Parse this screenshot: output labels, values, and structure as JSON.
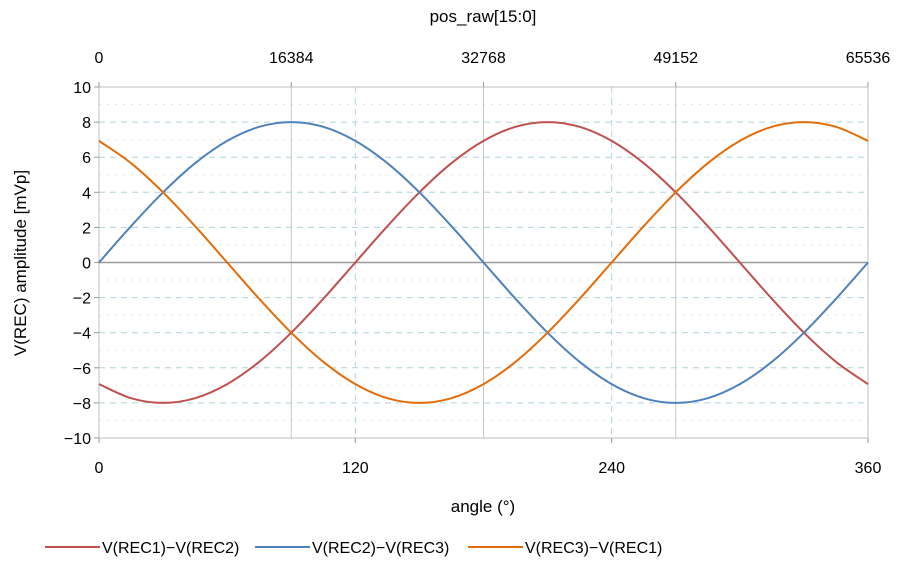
{
  "chart_data": {
    "type": "line",
    "xlabel": "angle (°)",
    "x2label": "pos_raw[15:0]",
    "ylabel": "V(REC) amplitude [mVp]",
    "xlim": [
      0,
      360
    ],
    "ylim": [
      -10,
      10
    ],
    "x_ticks": [
      "0",
      "120",
      "240",
      "360"
    ],
    "x2_ticks": [
      "0",
      "16384",
      "32768",
      "49152",
      "65536"
    ],
    "y_ticks": [
      "10",
      "8",
      "6",
      "4",
      "2",
      "0",
      "−2",
      "−4",
      "−6",
      "−8",
      "−10"
    ],
    "grid": true,
    "legend_position": "bottom",
    "x": [
      0,
      15,
      30,
      45,
      60,
      75,
      90,
      105,
      120,
      135,
      150,
      165,
      180,
      195,
      210,
      225,
      240,
      255,
      270,
      285,
      300,
      315,
      330,
      345,
      360
    ],
    "series": [
      {
        "name": "V(REC1)−V(REC2)",
        "color": "#c0504d",
        "values": [
          -6.93,
          -7.73,
          -8.0,
          -7.73,
          -6.93,
          -5.66,
          -4.0,
          -2.07,
          0.0,
          2.07,
          4.0,
          5.66,
          6.93,
          7.73,
          8.0,
          7.73,
          6.93,
          5.66,
          4.0,
          2.07,
          0.0,
          -2.07,
          -4.0,
          -5.66,
          -6.93
        ]
      },
      {
        "name": "V(REC2)−V(REC3)",
        "color": "#4f81bd",
        "values": [
          0.0,
          2.07,
          4.0,
          5.66,
          6.93,
          7.73,
          8.0,
          7.73,
          6.93,
          5.66,
          4.0,
          2.07,
          0.0,
          -2.07,
          -4.0,
          -5.66,
          -6.93,
          -7.73,
          -8.0,
          -7.73,
          -6.93,
          -5.66,
          -4.0,
          -2.07,
          0.0
        ]
      },
      {
        "name": "V(REC3)−V(REC1)",
        "color": "#e36c09",
        "values": [
          6.93,
          5.66,
          4.0,
          2.07,
          0.0,
          -2.07,
          -4.0,
          -5.66,
          -6.93,
          -7.73,
          -8.0,
          -7.73,
          -6.93,
          -5.66,
          -4.0,
          -2.07,
          0.0,
          2.07,
          4.0,
          5.66,
          6.93,
          7.73,
          8.0,
          7.73,
          6.93
        ]
      }
    ]
  }
}
